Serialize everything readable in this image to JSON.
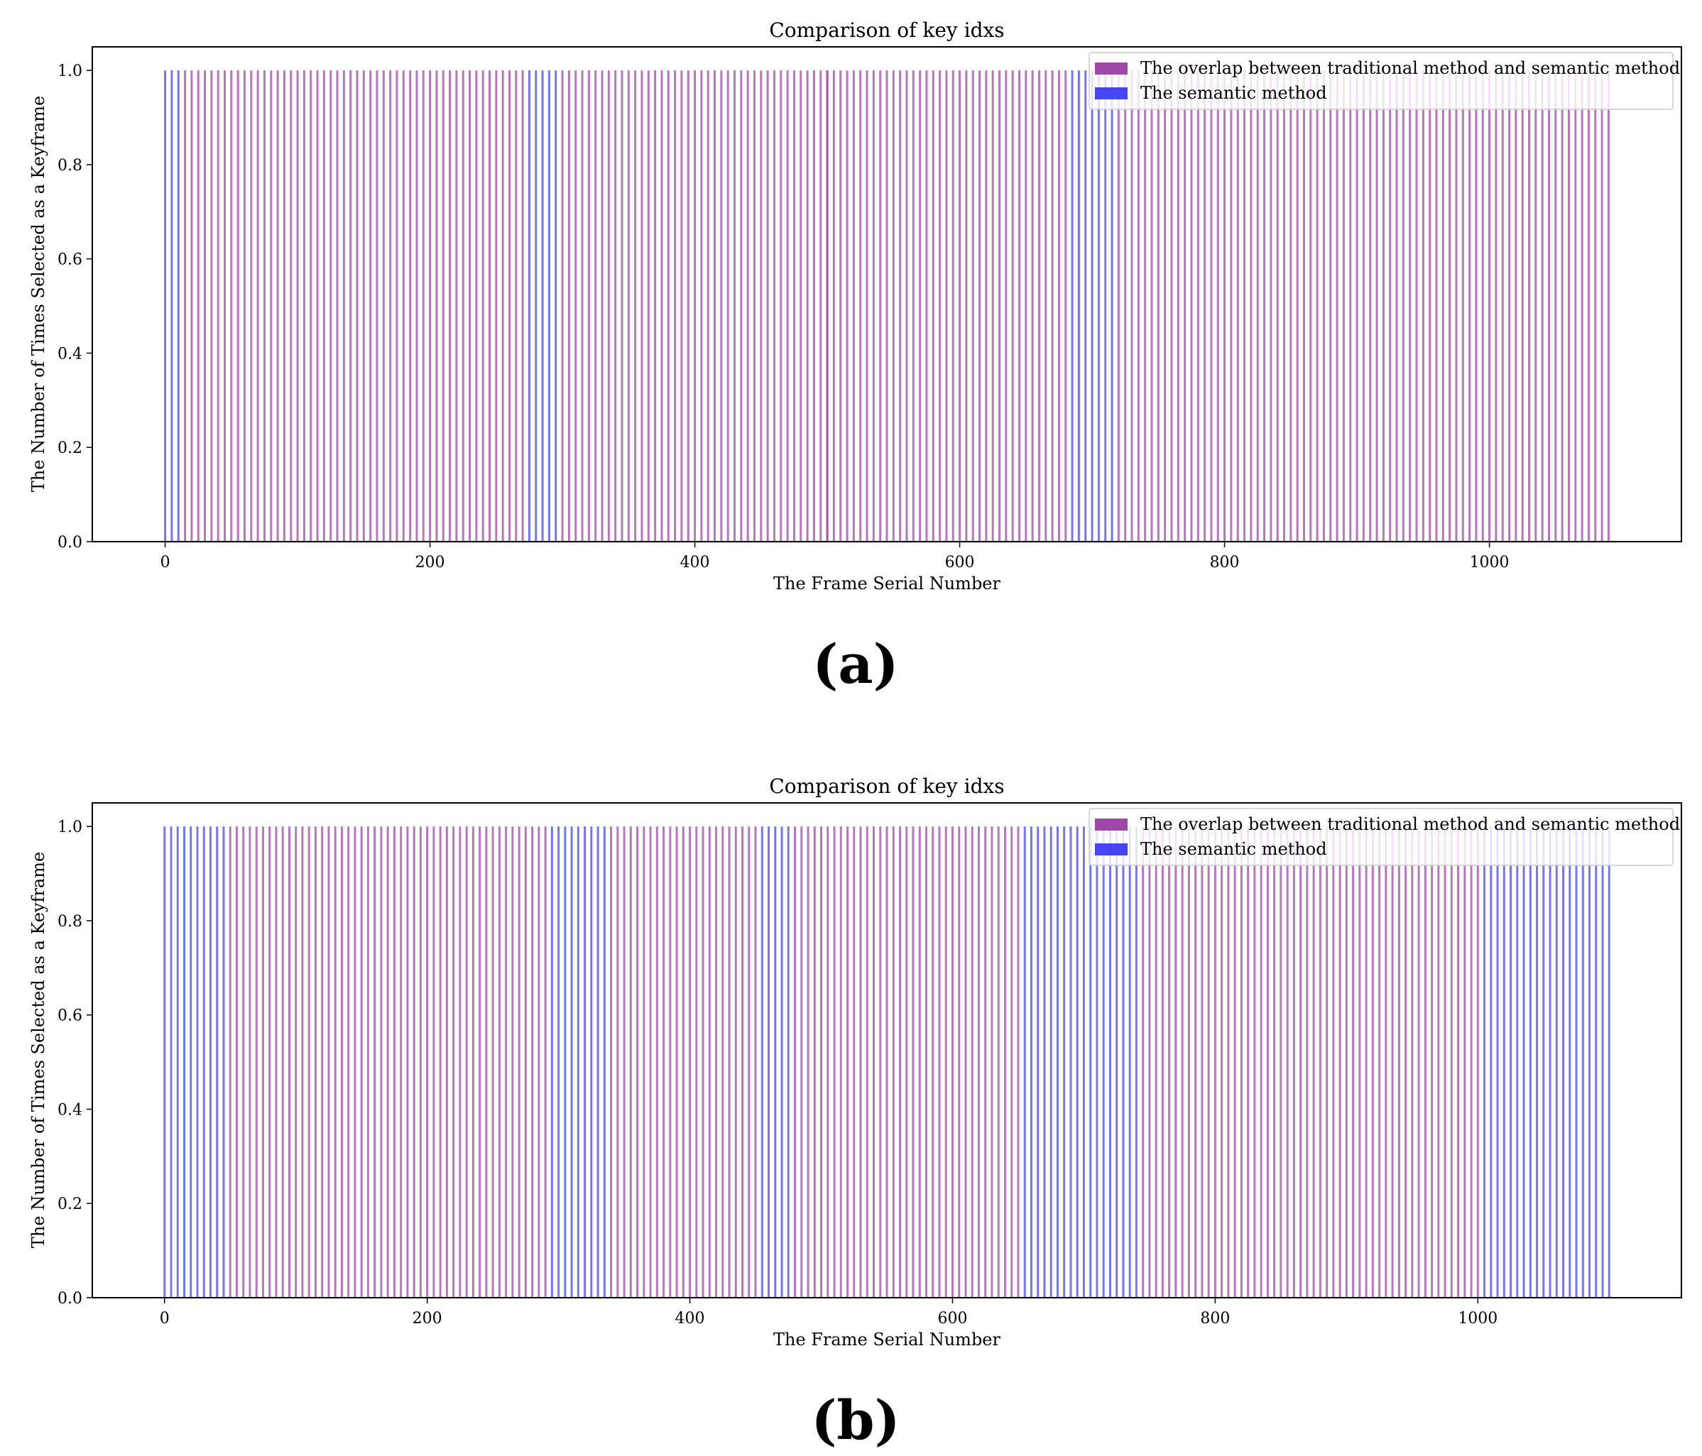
{
  "charts": [
    {
      "panel_label": "(a)",
      "title": "Comparison of key idxs",
      "xlabel": "The Frame Serial Number",
      "ylabel": "The Number of Times Selected as a Keyframe",
      "legend": {
        "overlap_label": "The overlap between traditional method and semantic method",
        "semantic_label": "The semantic method"
      }
    },
    {
      "panel_label": "(b)",
      "title": "Comparison of key idxs",
      "xlabel": "The Frame Serial Number",
      "ylabel": "The Number of Times Selected as a Keyframe",
      "legend": {
        "overlap_label": "The overlap between traditional method and semantic method",
        "semantic_label": "The semantic method"
      }
    }
  ],
  "colors": {
    "overlap": "#9c48a6",
    "semantic": "#4646f5"
  },
  "chart_data": [
    {
      "type": "bar",
      "title": "Comparison of key idxs",
      "xlabel": "The Frame Serial Number",
      "ylabel": "The Number of Times Selected as a Keyframe",
      "xlim": [
        -55,
        1145
      ],
      "ylim": [
        0,
        1.05
      ],
      "xticks": [
        0,
        200,
        400,
        600,
        800,
        1000
      ],
      "yticks": [
        0.0,
        0.2,
        0.4,
        0.6,
        0.8,
        1.0
      ],
      "xtick_labels": [
        "0",
        "200",
        "400",
        "600",
        "800",
        "1000"
      ],
      "ytick_labels": [
        "0.0",
        "0.2",
        "0.4",
        "0.6",
        "0.8",
        "1.0"
      ],
      "legend_position": "upper-right",
      "series": [
        {
          "name": "The overlap between traditional method and semantic method",
          "segments": [
            [
              15,
              270,
              5,
              1.0
            ],
            [
              300,
              500,
              5,
              1.0
            ],
            [
              500,
              680,
              5,
              1.0
            ],
            [
              720,
              1090,
              5,
              1.0
            ]
          ]
        },
        {
          "name": "The semantic method",
          "segments": [
            [
              0,
              10,
              5,
              1.0
            ],
            [
              275,
              295,
              5,
              1.0
            ],
            [
              685,
              715,
              5,
              1.0
            ]
          ]
        }
      ]
    },
    {
      "type": "bar",
      "title": "Comparison of key idxs",
      "xlabel": "The Frame Serial Number",
      "ylabel": "The Number of Times Selected as a Keyframe",
      "xlim": [
        -55,
        1155
      ],
      "ylim": [
        0,
        1.05
      ],
      "xticks": [
        0,
        200,
        400,
        600,
        800,
        1000
      ],
      "yticks": [
        0.0,
        0.2,
        0.4,
        0.6,
        0.8,
        1.0
      ],
      "xtick_labels": [
        "0",
        "200",
        "400",
        "600",
        "800",
        "1000"
      ],
      "ytick_labels": [
        "0.0",
        "0.2",
        "0.4",
        "0.6",
        "0.8",
        "1.0"
      ],
      "legend_position": "upper-right",
      "series": [
        {
          "name": "The overlap between traditional method and semantic method",
          "segments": [
            [
              50,
              140,
              5,
              1.0
            ],
            [
              145,
              290,
              5,
              1.0
            ],
            [
              340,
              450,
              5,
              1.0
            ],
            [
              480,
              650,
              5,
              1.0
            ],
            [
              745,
              975,
              5,
              1.0
            ],
            [
              980,
              1000,
              5,
              1.0
            ]
          ]
        },
        {
          "name": "The semantic method",
          "segments": [
            [
              0,
              45,
              5,
              1.0
            ],
            [
              295,
              335,
              5,
              1.0
            ],
            [
              455,
              475,
              5,
              1.0
            ],
            [
              655,
              740,
              5,
              1.0
            ],
            [
              1005,
              1100,
              5,
              1.0
            ]
          ]
        }
      ]
    }
  ]
}
